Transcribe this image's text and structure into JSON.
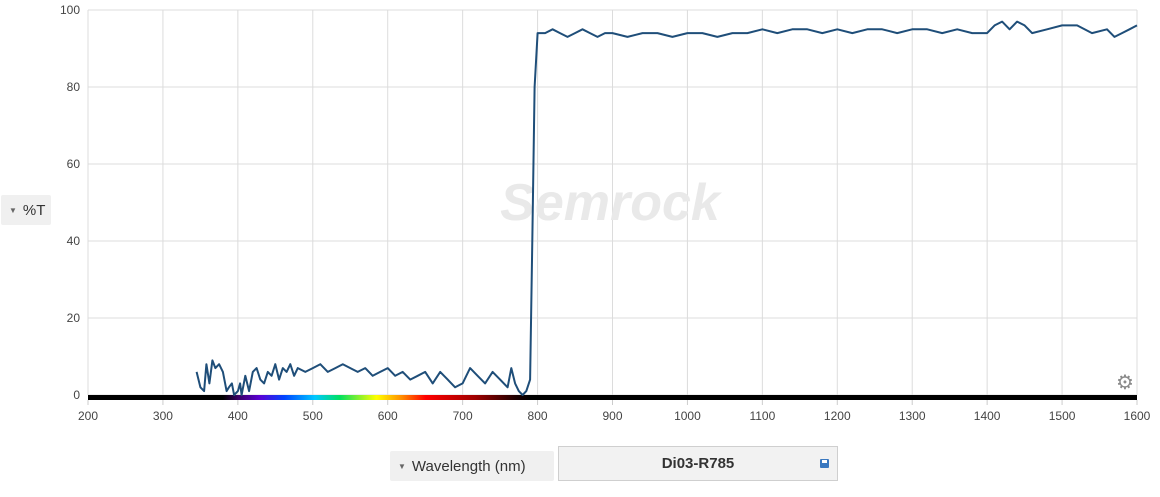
{
  "y_axis_button": {
    "label": "%T",
    "caret_icon": "caret-down-icon"
  },
  "x_axis_button": {
    "label": "Wavelength (nm)",
    "caret_icon": "caret-down-icon"
  },
  "product": {
    "name": "Di03-R785",
    "save_icon": "save-icon"
  },
  "settings_icon": "gear-icon",
  "watermark": "Semrock",
  "colors": {
    "line": "#1f4e79",
    "grid": "#dcdcdc",
    "axis": "#cccccc"
  },
  "chart_data": {
    "type": "line",
    "title": "",
    "xlabel": "Wavelength (nm)",
    "ylabel": "%T",
    "xlim": [
      200,
      1600
    ],
    "ylim": [
      0,
      100
    ],
    "x_ticks": [
      200,
      300,
      400,
      500,
      600,
      700,
      800,
      900,
      1000,
      1100,
      1200,
      1300,
      1400,
      1500,
      1600
    ],
    "y_ticks": [
      0,
      20,
      40,
      60,
      80,
      100
    ],
    "grid": true,
    "legend": "none",
    "spectrum_bar": true,
    "series": [
      {
        "name": "Di03-R785",
        "x": [
          345,
          350,
          355,
          358,
          362,
          366,
          370,
          375,
          380,
          385,
          388,
          392,
          395,
          400,
          403,
          405,
          410,
          415,
          420,
          425,
          430,
          435,
          440,
          445,
          450,
          455,
          460,
          465,
          470,
          475,
          480,
          490,
          500,
          510,
          520,
          530,
          540,
          550,
          560,
          570,
          580,
          590,
          600,
          610,
          620,
          630,
          640,
          650,
          660,
          670,
          680,
          690,
          700,
          710,
          720,
          730,
          740,
          750,
          760,
          765,
          770,
          775,
          780,
          785,
          790,
          793,
          796,
          800,
          810,
          820,
          830,
          840,
          850,
          860,
          870,
          880,
          890,
          900,
          920,
          940,
          960,
          980,
          1000,
          1020,
          1040,
          1060,
          1080,
          1100,
          1120,
          1140,
          1160,
          1180,
          1200,
          1220,
          1240,
          1260,
          1280,
          1300,
          1320,
          1340,
          1360,
          1380,
          1400,
          1410,
          1420,
          1430,
          1440,
          1450,
          1460,
          1480,
          1500,
          1520,
          1540,
          1560,
          1570,
          1580,
          1590,
          1600
        ],
        "y": [
          6,
          2,
          1,
          8,
          3,
          9,
          7,
          8,
          6,
          1,
          2,
          3,
          0,
          1,
          3,
          0,
          5,
          1,
          6,
          7,
          4,
          3,
          6,
          5,
          8,
          4,
          7,
          6,
          8,
          5,
          7,
          6,
          7,
          8,
          6,
          7,
          8,
          7,
          6,
          7,
          5,
          6,
          7,
          5,
          6,
          4,
          5,
          6,
          3,
          6,
          4,
          2,
          3,
          7,
          5,
          3,
          6,
          4,
          2,
          7,
          3,
          1,
          0,
          1,
          4,
          40,
          80,
          94,
          94,
          95,
          94,
          93,
          94,
          95,
          94,
          93,
          94,
          94,
          93,
          94,
          94,
          93,
          94,
          94,
          93,
          94,
          94,
          95,
          94,
          95,
          95,
          94,
          95,
          94,
          95,
          95,
          94,
          95,
          95,
          94,
          95,
          94,
          94,
          96,
          97,
          95,
          97,
          96,
          94,
          95,
          96,
          96,
          94,
          95,
          93,
          94,
          95,
          96
        ]
      }
    ]
  }
}
